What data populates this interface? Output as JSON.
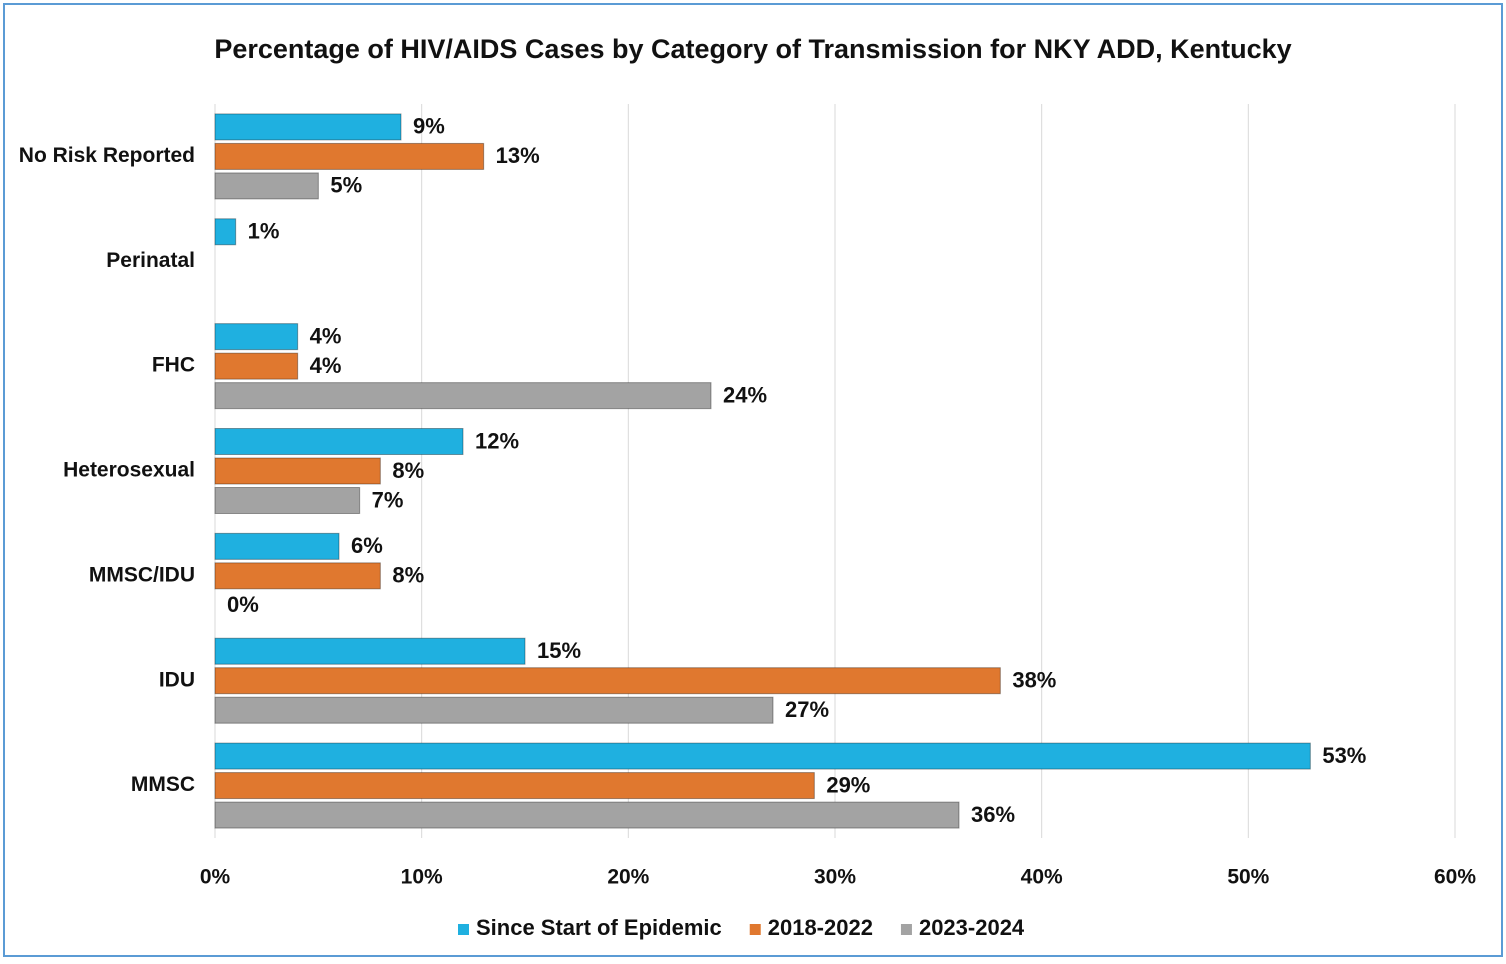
{
  "chart_data": {
    "type": "bar",
    "orientation": "horizontal",
    "title": "Percentage of HIV/AIDS Cases by Category of Transmission  for NKY ADD, Kentucky",
    "categories": [
      "No Risk Reported",
      "Perinatal",
      "FHC",
      "Heterosexual",
      "MMSC/IDU",
      "IDU",
      "MMSC"
    ],
    "series": [
      {
        "name": "Since Start of Epidemic",
        "color": "#1fb0e0",
        "values": [
          9,
          1,
          4,
          12,
          6,
          15,
          53
        ],
        "value_labels": [
          "9%",
          "1%",
          "4%",
          "12%",
          "6%",
          "15%",
          "53%"
        ]
      },
      {
        "name": "2018-2022",
        "color": "#e0782f",
        "values": [
          13,
          null,
          4,
          8,
          8,
          38,
          29
        ],
        "value_labels": [
          "13%",
          null,
          "4%",
          "8%",
          "8%",
          "38%",
          "29%"
        ]
      },
      {
        "name": "2023-2024",
        "color": "#a3a3a3",
        "values": [
          5,
          null,
          24,
          7,
          0,
          27,
          36
        ],
        "value_labels": [
          "5%",
          null,
          "24%",
          "7%",
          "0%",
          "27%",
          "36%"
        ]
      }
    ],
    "xlim": [
      0,
      60
    ],
    "xticks": [
      {
        "value": 0,
        "label": "0%"
      },
      {
        "value": 10,
        "label": "10%"
      },
      {
        "value": 20,
        "label": "20%"
      },
      {
        "value": 30,
        "label": "30%"
      },
      {
        "value": 40,
        "label": "40%"
      },
      {
        "value": 50,
        "label": "50%"
      },
      {
        "value": 60,
        "label": "60%"
      }
    ],
    "grid": true,
    "legend": "bottom"
  }
}
